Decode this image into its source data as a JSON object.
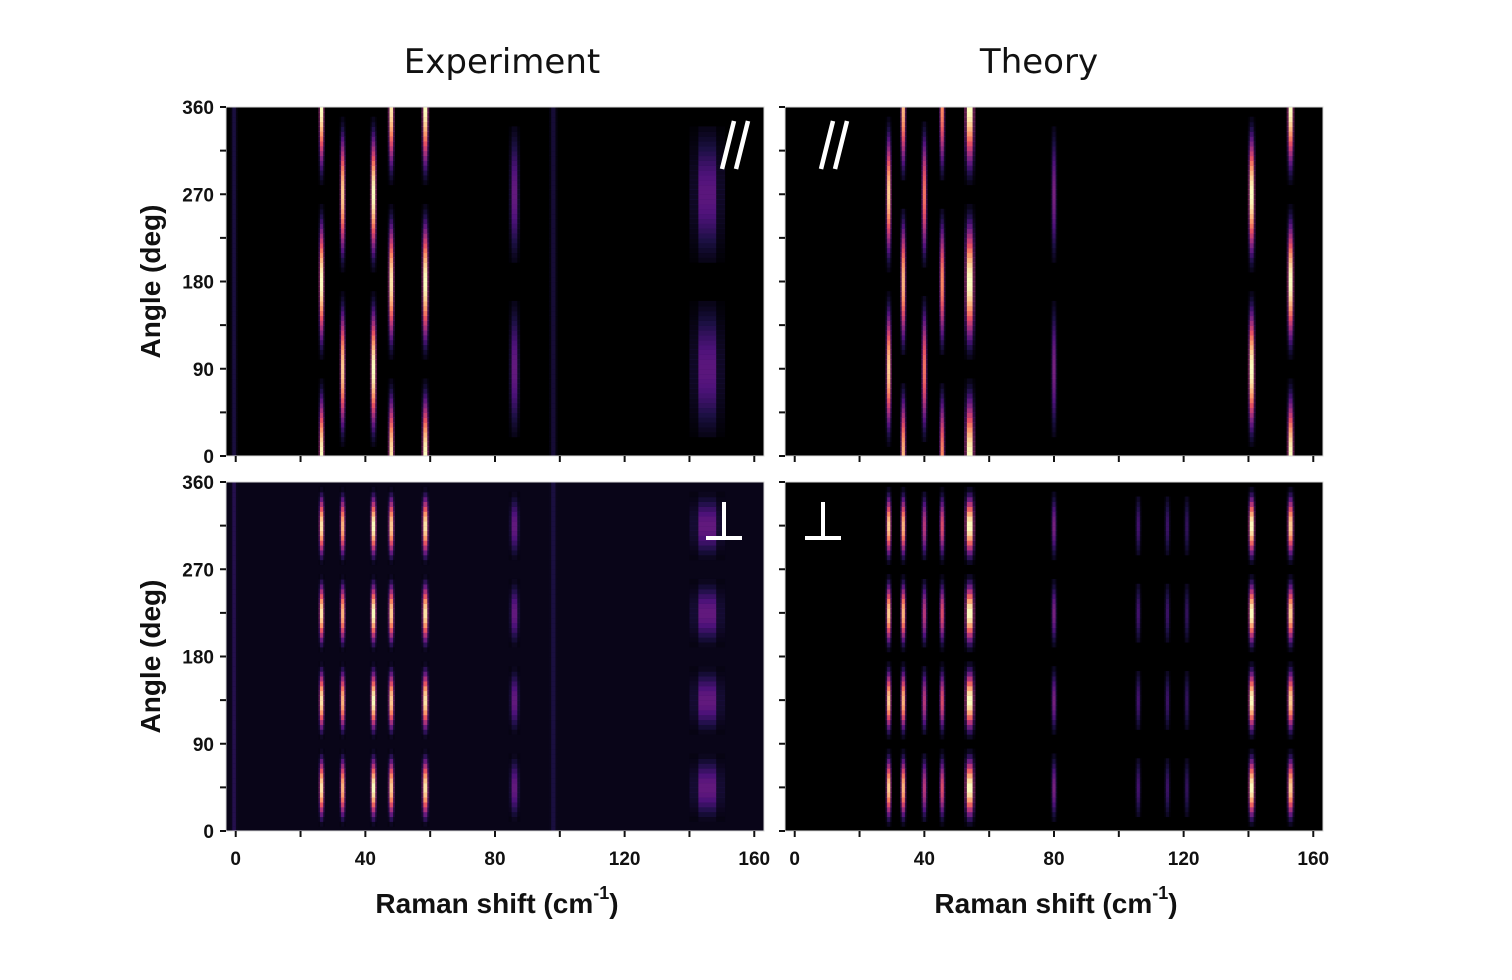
{
  "colors": {
    "background": "#000000",
    "text": "#111111",
    "marker": "#ffffff"
  },
  "chart_data": [
    {
      "type": "heatmap",
      "panel": "experiment-parallel",
      "title": "Experiment",
      "polarization": "//",
      "xlabel": "",
      "ylabel": "Angle (deg)",
      "xlim": [
        -3,
        163
      ],
      "ylim": [
        0,
        360
      ],
      "xticks": [
        "0",
        "40",
        "80",
        "120",
        "160"
      ],
      "yticks": [
        "0",
        "90",
        "180",
        "270",
        "360"
      ],
      "colormap": "magma",
      "peaks": [
        {
          "x": -0.5,
          "amp": 0.12,
          "pattern": "const",
          "width": 0.5
        },
        {
          "x": 26.5,
          "amp": 1.0,
          "pattern": "cos2",
          "width": 0.45
        },
        {
          "x": 33,
          "amp": 0.9,
          "pattern": "sin2",
          "width": 0.45
        },
        {
          "x": 42.5,
          "amp": 1.0,
          "pattern": "sin2",
          "width": 0.5
        },
        {
          "x": 48,
          "amp": 0.95,
          "pattern": "cos2",
          "width": 0.5
        },
        {
          "x": 58.5,
          "amp": 1.0,
          "pattern": "cos2",
          "width": 0.55
        },
        {
          "x": 86,
          "amp": 0.3,
          "pattern": "sin2",
          "width": 0.8
        },
        {
          "x": 98,
          "amp": 0.1,
          "pattern": "const",
          "width": 0.6
        },
        {
          "x": 145.5,
          "amp": 0.28,
          "pattern": "sin2",
          "width": 2.5
        }
      ]
    },
    {
      "type": "heatmap",
      "panel": "theory-parallel",
      "title": "Theory",
      "polarization": "//",
      "xlabel": "",
      "ylabel": "",
      "xlim": [
        -3,
        163
      ],
      "ylim": [
        0,
        360
      ],
      "xticks": [
        "0",
        "40",
        "80",
        "120",
        "160"
      ],
      "yticks": [],
      "colormap": "magma",
      "peaks": [
        {
          "x": 29,
          "amp": 0.9,
          "pattern": "sin2",
          "width": 0.45
        },
        {
          "x": 33.5,
          "amp": 0.85,
          "pattern": "cos2",
          "width": 0.45
        },
        {
          "x": 40,
          "amp": 0.7,
          "pattern": "sin2",
          "width": 0.45
        },
        {
          "x": 45.5,
          "amp": 0.75,
          "pattern": "cos2",
          "width": 0.45
        },
        {
          "x": 54,
          "amp": 1.0,
          "pattern": "cos2",
          "width": 0.8
        },
        {
          "x": 80,
          "amp": 0.35,
          "pattern": "sin2",
          "width": 0.45
        },
        {
          "x": 141,
          "amp": 1.0,
          "pattern": "sin2",
          "width": 0.55
        },
        {
          "x": 153,
          "amp": 1.0,
          "pattern": "cos2",
          "width": 0.55
        }
      ]
    },
    {
      "type": "heatmap",
      "panel": "experiment-perpendicular",
      "title": "",
      "polarization": "⊥",
      "xlabel": "Raman shift (cm",
      "xlabel_sup": "-1",
      "xlabel_end": ")",
      "ylabel": "Angle (deg)",
      "xlim": [
        -3,
        163
      ],
      "ylim": [
        0,
        360
      ],
      "xticks": [
        "0",
        "40",
        "80",
        "120",
        "160"
      ],
      "yticks": [
        "0",
        "90",
        "180",
        "270",
        "360"
      ],
      "colormap": "magma",
      "background_level": 0.04,
      "peaks": [
        {
          "x": -0.5,
          "amp": 0.15,
          "pattern": "const",
          "width": 0.5
        },
        {
          "x": 26.5,
          "amp": 0.95,
          "pattern": "sin2x",
          "width": 0.45
        },
        {
          "x": 33,
          "amp": 0.85,
          "pattern": "sin2x",
          "width": 0.45
        },
        {
          "x": 42.5,
          "amp": 1.0,
          "pattern": "sin2x",
          "width": 0.5
        },
        {
          "x": 48,
          "amp": 0.9,
          "pattern": "sin2x",
          "width": 0.5
        },
        {
          "x": 58.5,
          "amp": 0.95,
          "pattern": "sin2x",
          "width": 0.55
        },
        {
          "x": 86,
          "amp": 0.3,
          "pattern": "sin2x",
          "width": 0.8
        },
        {
          "x": 98,
          "amp": 0.12,
          "pattern": "const",
          "width": 0.6
        },
        {
          "x": 145.5,
          "amp": 0.3,
          "pattern": "sin2x",
          "width": 2.5
        }
      ]
    },
    {
      "type": "heatmap",
      "panel": "theory-perpendicular",
      "title": "",
      "polarization": "⊥",
      "xlabel": "Raman shift (cm",
      "xlabel_sup": "-1",
      "xlabel_end": ")",
      "ylabel": "",
      "xlim": [
        -3,
        163
      ],
      "ylim": [
        0,
        360
      ],
      "xticks": [
        "0",
        "40",
        "80",
        "120",
        "160"
      ],
      "yticks": [],
      "colormap": "magma",
      "peaks": [
        {
          "x": 29,
          "amp": 0.9,
          "pattern": "sin2x",
          "width": 0.45
        },
        {
          "x": 33.5,
          "amp": 0.85,
          "pattern": "sin2x",
          "width": 0.45
        },
        {
          "x": 40,
          "amp": 0.5,
          "pattern": "sin2x",
          "width": 0.45
        },
        {
          "x": 45.5,
          "amp": 0.6,
          "pattern": "sin2x",
          "width": 0.45
        },
        {
          "x": 54,
          "amp": 1.0,
          "pattern": "sin2x",
          "width": 0.8
        },
        {
          "x": 80,
          "amp": 0.35,
          "pattern": "sin2x",
          "width": 0.45
        },
        {
          "x": 106,
          "amp": 0.22,
          "pattern": "sin2x",
          "width": 0.45
        },
        {
          "x": 115,
          "amp": 0.2,
          "pattern": "sin2x",
          "width": 0.45
        },
        {
          "x": 121,
          "amp": 0.18,
          "pattern": "sin2x",
          "width": 0.45
        },
        {
          "x": 141,
          "amp": 1.0,
          "pattern": "sin2x",
          "width": 0.55
        },
        {
          "x": 153,
          "amp": 0.9,
          "pattern": "sin2x",
          "width": 0.55
        }
      ]
    }
  ]
}
